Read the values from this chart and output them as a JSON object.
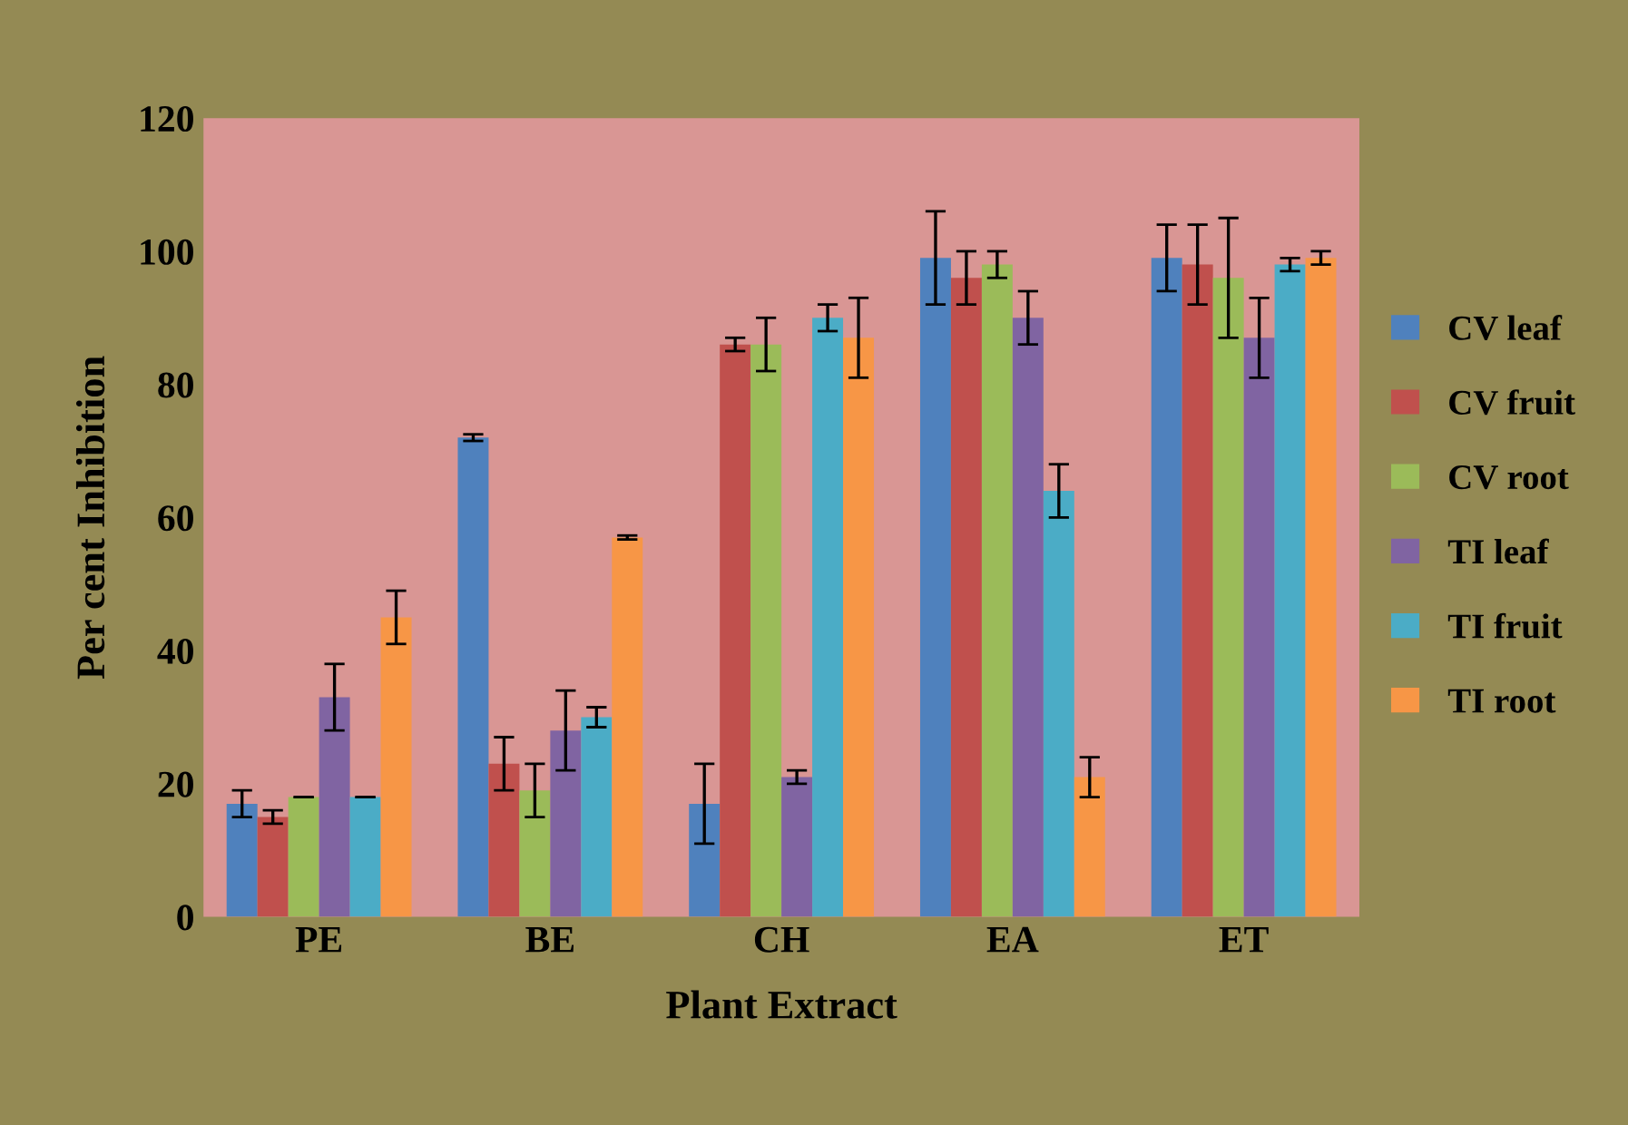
{
  "chart_data": {
    "type": "bar",
    "xlabel": "Plant Extract",
    "ylabel": "Per cent Inhibition",
    "categories": [
      "PE",
      "BE",
      "CH",
      "EA",
      "ET"
    ],
    "series": [
      {
        "name": "CV leaf",
        "color": "#4f81bd",
        "values": [
          17,
          72,
          17,
          99,
          99
        ],
        "errors": [
          2,
          0.5,
          6,
          7,
          5
        ]
      },
      {
        "name": "CV fruit",
        "color": "#c0504d",
        "values": [
          15,
          23,
          86,
          96,
          98
        ],
        "errors": [
          1,
          4,
          1,
          4,
          6
        ]
      },
      {
        "name": "CV root",
        "color": "#9bbb59",
        "values": [
          18,
          19,
          86,
          98,
          96
        ],
        "errors": [
          0,
          4,
          4,
          2,
          9
        ]
      },
      {
        "name": "TI leaf",
        "color": "#8064a2",
        "values": [
          33,
          28,
          21,
          90,
          87
        ],
        "errors": [
          5,
          6,
          1,
          4,
          6
        ]
      },
      {
        "name": "TI fruit",
        "color": "#4bacc6",
        "values": [
          18,
          30,
          90,
          64,
          98
        ],
        "errors": [
          0,
          1.5,
          2,
          4,
          1
        ]
      },
      {
        "name": "TI root",
        "color": "#f79646",
        "values": [
          45,
          57,
          87,
          21,
          99
        ],
        "errors": [
          4,
          0.3,
          6,
          3,
          1
        ]
      }
    ],
    "ylim": [
      0,
      120
    ],
    "yticks": [
      0,
      20,
      40,
      60,
      80,
      100,
      120
    ],
    "grid": false,
    "legend": "right"
  }
}
